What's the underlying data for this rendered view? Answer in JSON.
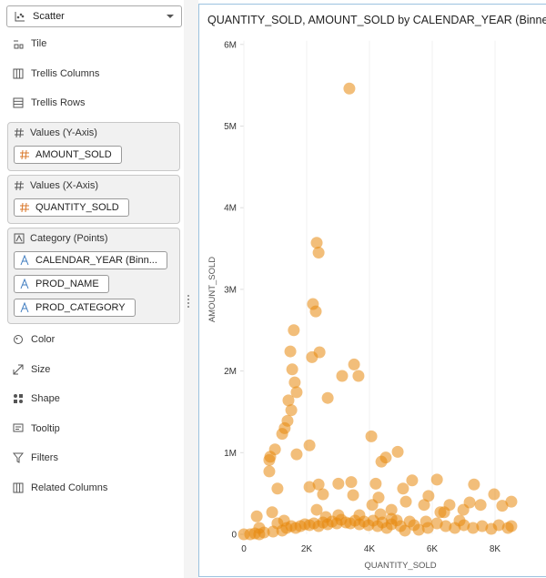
{
  "sidebar": {
    "chart_type": "Scatter",
    "items_top": [
      "Tile",
      "Trellis Columns",
      "Trellis Rows"
    ],
    "sections": [
      {
        "label": "Values (Y-Axis)",
        "columns": [
          "AMOUNT_SOLD"
        ]
      },
      {
        "label": "Values (X-Axis)",
        "columns": [
          "QUANTITY_SOLD"
        ]
      },
      {
        "label": "Category (Points)",
        "columns": [
          "CALENDAR_YEAR (Binn...",
          "PROD_NAME",
          "PROD_CATEGORY"
        ]
      }
    ],
    "items_bottom": [
      "Color",
      "Size",
      "Shape",
      "Tooltip",
      "Filters",
      "Related Columns"
    ]
  },
  "chart_data": {
    "type": "scatter",
    "title": "QUANTITY_SOLD, AMOUNT_SOLD by CALENDAR_YEAR (Binned), I",
    "x_label": "QUANTITY_SOLD",
    "y_label": "AMOUNT_SOLD",
    "color": "#e8890c",
    "grid": true,
    "xlim": [
      0,
      9600
    ],
    "ylim": [
      0,
      6000000
    ],
    "xticks": [
      0,
      {
        "value": 2000,
        "label": "2K"
      },
      {
        "value": 4000,
        "label": "4K"
      },
      {
        "value": 6000,
        "label": "6K"
      },
      {
        "value": 8000,
        "label": "8K"
      }
    ],
    "yticks": [
      0,
      {
        "value": 1000000,
        "label": "1M"
      },
      {
        "value": 2000000,
        "label": "2M"
      },
      {
        "value": 3000000,
        "label": "3M"
      },
      {
        "value": 4000000,
        "label": "4M"
      },
      {
        "value": 5000000,
        "label": "5M"
      },
      {
        "value": 6000000,
        "label": "6M"
      }
    ],
    "x": [
      3360,
      2320,
      2380,
      2200,
      2290,
      1590,
      2410,
      2170,
      1480,
      3510,
      1540,
      3130,
      3650,
      1620,
      1680,
      2670,
      1420,
      1510,
      1390,
      1300,
      1220,
      990,
      2090,
      1680,
      4060,
      4900,
      4520,
      4380,
      810,
      810,
      840,
      4200,
      4290,
      4090,
      3420,
      3010,
      2380,
      2090,
      1070,
      2520,
      3480,
      5070,
      5360,
      5160,
      6150,
      5880,
      6550,
      7330,
      7540,
      7970,
      8520,
      8230,
      6380,
      6990,
      7190,
      4700,
      4870,
      5740,
      6260,
      2320,
      900,
      410,
      0,
      200,
      350,
      490,
      640,
      930,
      1220,
      1360,
      1510,
      1650,
      1800,
      1940,
      2090,
      2230,
      2380,
      2520,
      2670,
      2810,
      2960,
      3100,
      3250,
      3390,
      3540,
      3680,
      3830,
      3970,
      4120,
      4260,
      4410,
      4550,
      4700,
      4990,
      5130,
      5280,
      5420,
      5570,
      5860,
      6150,
      6430,
      6720,
      7010,
      7300,
      7590,
      7880,
      8120,
      8410,
      8520,
      1070,
      1280,
      2610,
      3010,
      3680,
      4350,
      4700,
      5800,
      6870,
      490
    ],
    "values": [
      5460000,
      3570000,
      3450000,
      2820000,
      2730000,
      2500000,
      2230000,
      2170000,
      2240000,
      2080000,
      2020000,
      1940000,
      1940000,
      1860000,
      1740000,
      1670000,
      1640000,
      1520000,
      1390000,
      1300000,
      1230000,
      1040000,
      1090000,
      980000,
      1200000,
      1010000,
      940000,
      890000,
      910000,
      770000,
      950000,
      620000,
      450000,
      360000,
      640000,
      620000,
      610000,
      580000,
      560000,
      490000,
      480000,
      560000,
      660000,
      400000,
      670000,
      470000,
      360000,
      610000,
      360000,
      490000,
      400000,
      350000,
      270000,
      300000,
      390000,
      300000,
      170000,
      360000,
      270000,
      300000,
      270000,
      220000,
      0,
      0,
      11000,
      0,
      22000,
      33000,
      45000,
      78000,
      100000,
      78000,
      100000,
      123000,
      112000,
      134000,
      100000,
      145000,
      123000,
      156000,
      134000,
      178000,
      145000,
      134000,
      167000,
      123000,
      156000,
      112000,
      167000,
      100000,
      145000,
      78000,
      123000,
      100000,
      45000,
      156000,
      112000,
      56000,
      78000,
      134000,
      100000,
      78000,
      112000,
      78000,
      100000,
      67000,
      112000,
      78000,
      100000,
      134000,
      167000,
      212000,
      234000,
      234000,
      245000,
      190000,
      156000,
      167000,
      78000
    ]
  }
}
